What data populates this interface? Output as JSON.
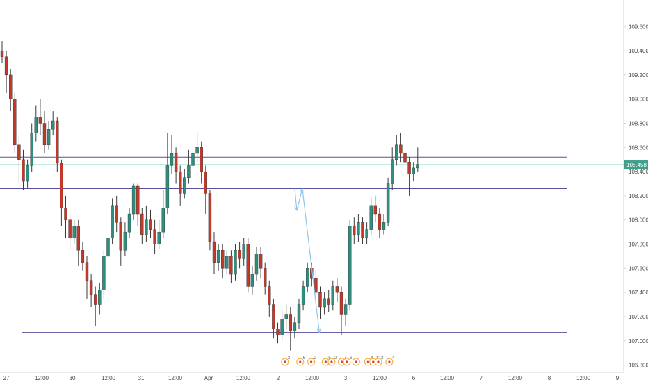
{
  "chart_data": {
    "type": "candlestick",
    "y_ticks": [
      "109.600",
      "109.400",
      "109.200",
      "109.000",
      "108.800",
      "108.600",
      "108.400",
      "108.200",
      "108.000",
      "107.800",
      "107.600",
      "107.400",
      "107.200",
      "107.000",
      "106.800"
    ],
    "x_ticks": [
      "27",
      "12:00",
      "30",
      "12:00",
      "31",
      "12:00",
      "Apr",
      "12:00",
      "2",
      "12:00",
      "3",
      "12:00",
      "6",
      "12:00",
      "7",
      "12:00",
      "8",
      "12:00",
      "9"
    ],
    "ylim": [
      106.74,
      109.82
    ],
    "current_price": "108.458",
    "horizontal_levels": [
      108.52,
      108.26,
      107.8,
      107.07
    ],
    "current_level": 108.458,
    "projection_path": [
      [
        69.0,
        108.26
      ],
      [
        69.5,
        108.08
      ],
      [
        70.8,
        108.26
      ],
      [
        74.8,
        107.07
      ]
    ],
    "projection_mid": [
      [
        69.5,
        108.08
      ],
      [
        70.8,
        108.26
      ]
    ],
    "candles": [
      [
        109.4,
        109.35,
        109.48,
        109.3
      ],
      [
        109.35,
        109.2,
        109.4,
        109.05
      ],
      [
        109.2,
        109.0,
        109.25,
        108.9
      ],
      [
        109.0,
        108.62,
        109.05,
        108.55
      ],
      [
        108.62,
        108.5,
        108.7,
        108.3
      ],
      [
        108.5,
        108.32,
        108.58,
        108.25
      ],
      [
        108.32,
        108.45,
        108.5,
        108.27
      ],
      [
        108.45,
        108.72,
        108.8,
        108.4
      ],
      [
        108.72,
        108.85,
        108.95,
        108.65
      ],
      [
        108.85,
        108.8,
        109.0,
        108.7
      ],
      [
        108.8,
        108.62,
        108.9,
        108.55
      ],
      [
        108.62,
        108.75,
        108.82,
        108.58
      ],
      [
        108.75,
        108.82,
        108.9,
        108.7
      ],
      [
        108.82,
        108.47,
        108.85,
        108.4
      ],
      [
        108.47,
        108.1,
        108.5,
        107.95
      ],
      [
        108.1,
        108.0,
        108.2,
        107.85
      ],
      [
        108.0,
        107.85,
        108.05,
        107.75
      ],
      [
        107.85,
        107.95,
        108.0,
        107.8
      ],
      [
        107.95,
        107.75,
        108.0,
        107.62
      ],
      [
        107.75,
        107.65,
        107.82,
        107.58
      ],
      [
        107.65,
        107.5,
        107.7,
        107.35
      ],
      [
        107.5,
        107.38,
        107.55,
        107.28
      ],
      [
        107.38,
        107.3,
        107.45,
        107.12
      ],
      [
        107.3,
        107.42,
        107.48,
        107.22
      ],
      [
        107.42,
        107.7,
        107.75,
        107.35
      ],
      [
        107.7,
        107.85,
        107.9,
        107.65
      ],
      [
        107.85,
        108.12,
        108.18,
        107.8
      ],
      [
        108.12,
        107.98,
        108.2,
        107.9
      ],
      [
        107.98,
        107.75,
        108.02,
        107.62
      ],
      [
        107.75,
        107.9,
        107.98,
        107.7
      ],
      [
        107.9,
        108.05,
        108.1,
        107.85
      ],
      [
        108.05,
        108.28,
        108.3,
        108.0
      ],
      [
        108.28,
        108.05,
        108.3,
        107.95
      ],
      [
        108.05,
        107.88,
        108.1,
        107.8
      ],
      [
        107.88,
        108.0,
        108.12,
        107.82
      ],
      [
        108.0,
        107.92,
        108.08,
        107.85
      ],
      [
        107.92,
        107.8,
        108.0,
        107.72
      ],
      [
        107.8,
        107.9,
        108.0,
        107.76
      ],
      [
        107.9,
        108.1,
        108.25,
        107.85
      ],
      [
        108.1,
        108.45,
        108.72,
        108.05
      ],
      [
        108.45,
        108.55,
        108.7,
        108.38
      ],
      [
        108.55,
        108.4,
        108.6,
        108.3
      ],
      [
        108.4,
        108.22,
        108.45,
        108.12
      ],
      [
        108.22,
        108.35,
        108.42,
        108.18
      ],
      [
        108.35,
        108.45,
        108.58,
        108.3
      ],
      [
        108.45,
        108.55,
        108.68,
        108.4
      ],
      [
        108.55,
        108.6,
        108.72,
        108.48
      ],
      [
        108.6,
        108.4,
        108.65,
        108.3
      ],
      [
        108.4,
        108.22,
        108.45,
        108.05
      ],
      [
        108.22,
        107.82,
        108.25,
        107.75
      ],
      [
        107.82,
        107.65,
        107.9,
        107.55
      ],
      [
        107.65,
        107.75,
        107.8,
        107.58
      ],
      [
        107.75,
        107.6,
        107.8,
        107.52
      ],
      [
        107.6,
        107.7,
        107.75,
        107.55
      ],
      [
        107.7,
        107.55,
        107.75,
        107.48
      ],
      [
        107.55,
        107.75,
        107.8,
        107.5
      ],
      [
        107.75,
        107.68,
        107.82,
        107.6
      ],
      [
        107.68,
        107.8,
        107.85,
        107.62
      ],
      [
        107.8,
        107.45,
        107.85,
        107.4
      ],
      [
        107.45,
        107.55,
        107.62,
        107.38
      ],
      [
        107.55,
        107.72,
        107.78,
        107.5
      ],
      [
        107.72,
        107.6,
        107.78,
        107.52
      ],
      [
        107.6,
        107.45,
        107.65,
        107.38
      ],
      [
        107.45,
        107.3,
        107.5,
        107.2
      ],
      [
        107.3,
        107.1,
        107.35,
        107.02
      ],
      [
        107.1,
        107.05,
        107.15,
        106.98
      ],
      [
        107.05,
        107.18,
        107.25,
        107.0
      ],
      [
        107.18,
        107.22,
        107.3,
        107.1
      ],
      [
        107.22,
        107.08,
        107.28,
        106.92
      ],
      [
        107.08,
        107.15,
        107.2,
        107.02
      ],
      [
        107.15,
        107.3,
        107.35,
        107.1
      ],
      [
        107.3,
        107.45,
        107.5,
        107.25
      ],
      [
        107.45,
        107.6,
        107.65,
        107.4
      ],
      [
        107.6,
        107.52,
        107.65,
        107.45
      ],
      [
        107.52,
        107.4,
        107.58,
        107.3
      ],
      [
        107.4,
        107.28,
        107.45,
        107.18
      ],
      [
        107.28,
        107.35,
        107.4,
        107.22
      ],
      [
        107.35,
        107.3,
        107.42,
        107.24
      ],
      [
        107.3,
        107.45,
        107.5,
        107.25
      ],
      [
        107.45,
        107.4,
        107.52,
        107.32
      ],
      [
        107.4,
        107.22,
        107.45,
        107.05
      ],
      [
        107.22,
        107.3,
        107.35,
        107.12
      ],
      [
        107.3,
        107.95,
        108.0,
        107.25
      ],
      [
        107.95,
        107.88,
        108.02,
        107.8
      ],
      [
        107.88,
        107.98,
        108.05,
        107.82
      ],
      [
        107.98,
        107.85,
        108.02,
        107.8
      ],
      [
        107.85,
        107.92,
        107.98,
        107.8
      ],
      [
        107.92,
        108.12,
        108.18,
        107.88
      ],
      [
        108.12,
        108.05,
        108.2,
        107.98
      ],
      [
        108.05,
        107.92,
        108.1,
        107.85
      ],
      [
        107.92,
        107.98,
        108.05,
        107.88
      ],
      [
        107.98,
        108.3,
        108.35,
        107.95
      ],
      [
        108.3,
        108.5,
        108.6,
        108.25
      ],
      [
        108.5,
        108.62,
        108.7,
        108.45
      ],
      [
        108.62,
        108.55,
        108.72,
        108.48
      ],
      [
        108.55,
        108.48,
        108.62,
        108.4
      ],
      [
        108.48,
        108.38,
        108.52,
        108.2
      ],
      [
        108.38,
        108.43,
        108.48,
        108.32
      ],
      [
        108.43,
        108.46,
        108.6,
        108.4
      ]
    ],
    "event_markers": [
      {
        "slot": 66.2,
        "count": "3"
      },
      {
        "slot": 69.8,
        "count": "6"
      },
      {
        "slot": 72.4,
        "count": "2"
      },
      {
        "slot": 75.8,
        "count": "5"
      },
      {
        "slot": 77.2,
        "count": "2"
      },
      {
        "slot": 79.6,
        "count": "4"
      },
      {
        "slot": 80.8,
        "count": "6"
      },
      {
        "slot": 83.0,
        "count": ""
      },
      {
        "slot": 85.8,
        "count": "4"
      },
      {
        "slot": 87.0,
        "count": "12"
      },
      {
        "slot": 88.2,
        "count": "3"
      },
      {
        "slot": 90.8,
        "count": "4"
      }
    ],
    "colors": {
      "up": "#2f8f7e",
      "down": "#c0392b",
      "wick": "#3a3a3a",
      "level": "#5a4f9f",
      "current_line": "#9fe0cf",
      "badge": "#3f9f8a",
      "projection": "#8fc6ec",
      "axis": "#cfd6e0"
    }
  }
}
